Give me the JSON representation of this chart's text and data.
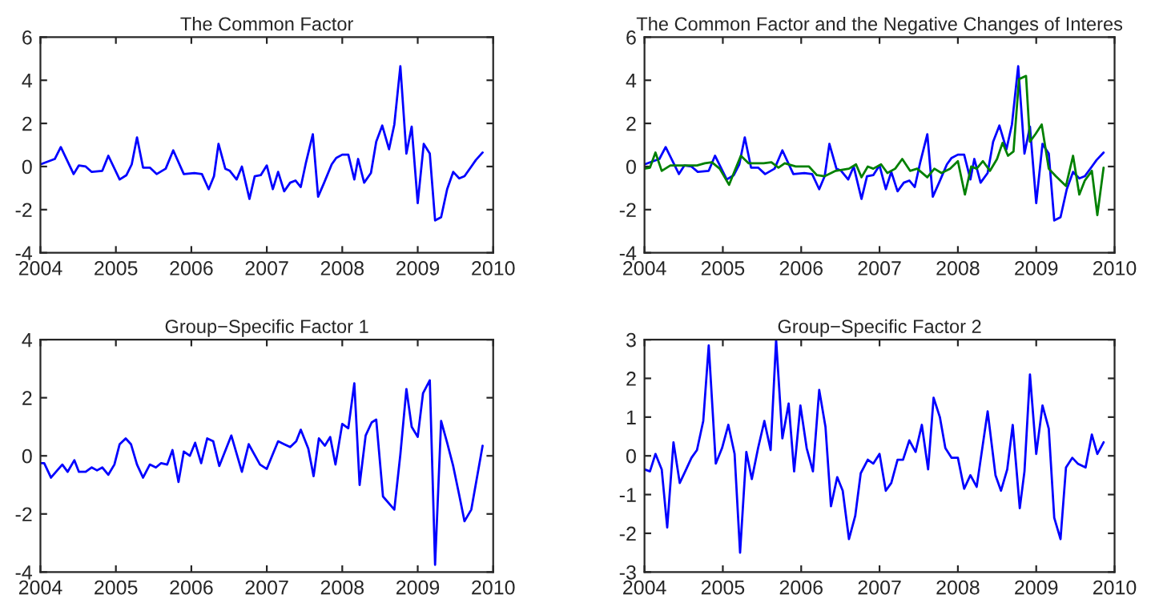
{
  "chart_data": [
    {
      "type": "line",
      "title": "The Common Factor",
      "xlim": [
        2004,
        2010
      ],
      "xticks": [
        2004,
        2005,
        2006,
        2007,
        2008,
        2009,
        2010
      ],
      "ylim": [
        -4,
        6
      ],
      "yticks": [
        -4,
        -2,
        0,
        2,
        4,
        6
      ],
      "grid": false,
      "legend": false,
      "series": [
        {
          "color": "#0000ff",
          "x": [
            2004.0,
            2004.19,
            2004.27,
            2004.44,
            2004.51,
            2004.6,
            2004.68,
            2004.82,
            2004.9,
            2005.05,
            2005.14,
            2005.21,
            2005.28,
            2005.36,
            2005.45,
            2005.54,
            2005.66,
            2005.76,
            2005.9,
            2006.04,
            2006.14,
            2006.23,
            2006.3,
            2006.36,
            2006.45,
            2006.51,
            2006.6,
            2006.67,
            2006.77,
            2006.84,
            2006.92,
            2007.0,
            2007.08,
            2007.15,
            2007.23,
            2007.31,
            2007.38,
            2007.45,
            2007.52,
            2007.61,
            2007.68,
            2007.76,
            2007.86,
            2007.92,
            2008.0,
            2008.08,
            2008.16,
            2008.21,
            2008.29,
            2008.38,
            2008.45,
            2008.53,
            2008.62,
            2008.69,
            2008.77,
            2008.85,
            2008.92,
            2009.0,
            2009.08,
            2009.16,
            2009.23,
            2009.31,
            2009.39,
            2009.47,
            2009.55,
            2009.62,
            2009.71,
            2009.77,
            2009.86
          ],
          "values": [
            0.1,
            0.35,
            0.9,
            -0.35,
            0.05,
            0.0,
            -0.25,
            -0.2,
            0.5,
            -0.6,
            -0.4,
            0.1,
            1.35,
            -0.05,
            -0.05,
            -0.35,
            -0.1,
            0.75,
            -0.35,
            -0.3,
            -0.35,
            -1.05,
            -0.45,
            1.05,
            -0.1,
            -0.2,
            -0.6,
            0.0,
            -1.5,
            -0.45,
            -0.4,
            0.05,
            -1.05,
            -0.25,
            -1.15,
            -0.75,
            -0.65,
            -0.95,
            0.2,
            1.5,
            -1.4,
            -0.75,
            0.1,
            0.4,
            0.55,
            0.55,
            -0.6,
            0.35,
            -0.75,
            -0.3,
            1.15,
            1.9,
            0.8,
            1.95,
            4.65,
            0.6,
            1.85,
            -1.7,
            1.05,
            0.6,
            -2.5,
            -2.35,
            -1.05,
            -0.25,
            -0.55,
            -0.45,
            0.0,
            0.3,
            0.65
          ]
        }
      ]
    },
    {
      "type": "line",
      "title": "The Common Factor and the Negative Changes of Interes",
      "xlim": [
        2004,
        2010
      ],
      "xticks": [
        2004,
        2005,
        2006,
        2007,
        2008,
        2009,
        2010
      ],
      "ylim": [
        -4,
        6
      ],
      "yticks": [
        -4,
        -2,
        0,
        2,
        4,
        6
      ],
      "grid": false,
      "legend": false,
      "series": [
        {
          "color": "#0000ff",
          "x": [
            2004.0,
            2004.19,
            2004.27,
            2004.44,
            2004.51,
            2004.6,
            2004.68,
            2004.82,
            2004.9,
            2005.05,
            2005.14,
            2005.21,
            2005.28,
            2005.36,
            2005.45,
            2005.54,
            2005.66,
            2005.76,
            2005.9,
            2006.04,
            2006.14,
            2006.23,
            2006.3,
            2006.36,
            2006.45,
            2006.51,
            2006.6,
            2006.67,
            2006.77,
            2006.84,
            2006.92,
            2007.0,
            2007.08,
            2007.15,
            2007.23,
            2007.31,
            2007.38,
            2007.45,
            2007.52,
            2007.61,
            2007.68,
            2007.76,
            2007.86,
            2007.92,
            2008.0,
            2008.08,
            2008.16,
            2008.21,
            2008.29,
            2008.38,
            2008.45,
            2008.53,
            2008.62,
            2008.69,
            2008.77,
            2008.85,
            2008.92,
            2009.0,
            2009.08,
            2009.16,
            2009.23,
            2009.31,
            2009.39,
            2009.47,
            2009.55,
            2009.62,
            2009.71,
            2009.77,
            2009.86
          ],
          "values": [
            0.1,
            0.35,
            0.9,
            -0.35,
            0.05,
            0.0,
            -0.25,
            -0.2,
            0.5,
            -0.6,
            -0.4,
            0.1,
            1.35,
            -0.05,
            -0.05,
            -0.35,
            -0.1,
            0.75,
            -0.35,
            -0.3,
            -0.35,
            -1.05,
            -0.45,
            1.05,
            -0.1,
            -0.2,
            -0.6,
            0.0,
            -1.5,
            -0.45,
            -0.4,
            0.05,
            -1.05,
            -0.25,
            -1.15,
            -0.75,
            -0.65,
            -0.95,
            0.2,
            1.5,
            -1.4,
            -0.75,
            0.1,
            0.4,
            0.55,
            0.55,
            -0.6,
            0.35,
            -0.75,
            -0.3,
            1.15,
            1.9,
            0.8,
            1.95,
            4.65,
            0.6,
            1.85,
            -1.7,
            1.05,
            0.6,
            -2.5,
            -2.35,
            -1.05,
            -0.25,
            -0.55,
            -0.45,
            0.0,
            0.3,
            0.65
          ]
        },
        {
          "color": "#008000",
          "x": [
            2004.0,
            2004.07,
            2004.14,
            2004.22,
            2004.33,
            2004.5,
            2004.67,
            2004.77,
            2004.86,
            2004.96,
            2005.08,
            2005.14,
            2005.23,
            2005.33,
            2005.52,
            2005.62,
            2005.71,
            2005.79,
            2005.93,
            2006.1,
            2006.2,
            2006.3,
            2006.44,
            2006.61,
            2006.7,
            2006.77,
            2006.85,
            2006.92,
            2007.02,
            2007.1,
            2007.2,
            2007.29,
            2007.39,
            2007.48,
            2007.61,
            2007.7,
            2007.79,
            2007.9,
            2008.0,
            2008.09,
            2008.17,
            2008.24,
            2008.32,
            2008.41,
            2008.5,
            2008.57,
            2008.64,
            2008.71,
            2008.78,
            2008.87,
            2008.92,
            2008.99,
            2009.07,
            2009.16,
            2009.25,
            2009.38,
            2009.47,
            2009.55,
            2009.62,
            2009.71,
            2009.78,
            2009.86
          ],
          "values": [
            -0.1,
            -0.05,
            0.65,
            -0.2,
            0.05,
            0.05,
            0.05,
            0.15,
            0.2,
            -0.1,
            -0.85,
            -0.3,
            0.5,
            0.15,
            0.15,
            0.2,
            -0.05,
            0.15,
            0.0,
            0.0,
            -0.4,
            -0.45,
            -0.2,
            -0.1,
            0.1,
            -0.5,
            0.0,
            -0.1,
            0.1,
            -0.3,
            -0.1,
            0.35,
            -0.2,
            -0.1,
            -0.5,
            -0.1,
            -0.3,
            -0.1,
            0.25,
            -1.3,
            0.0,
            -0.1,
            0.25,
            -0.2,
            0.35,
            1.1,
            0.5,
            0.7,
            4.05,
            4.2,
            1.15,
            1.5,
            1.95,
            -0.1,
            -0.45,
            -0.9,
            0.5,
            -1.3,
            -0.65,
            -0.2,
            -2.25,
            -0.05
          ]
        }
      ]
    },
    {
      "type": "line",
      "title": "Group−Specific Factor 1",
      "xlim": [
        2004,
        2010
      ],
      "xticks": [
        2004,
        2005,
        2006,
        2007,
        2008,
        2009,
        2010
      ],
      "ylim": [
        -4,
        4
      ],
      "yticks": [
        -4,
        -2,
        0,
        2,
        4
      ],
      "grid": false,
      "legend": false,
      "series": [
        {
          "color": "#0000ff",
          "x": [
            2004.0,
            2004.05,
            2004.14,
            2004.29,
            2004.36,
            2004.45,
            2004.51,
            2004.6,
            2004.68,
            2004.75,
            2004.82,
            2004.9,
            2004.98,
            2005.05,
            2005.13,
            2005.2,
            2005.28,
            2005.36,
            2005.45,
            2005.53,
            2005.6,
            2005.68,
            2005.75,
            2005.83,
            2005.9,
            2005.98,
            2006.05,
            2006.13,
            2006.21,
            2006.29,
            2006.37,
            2006.53,
            2006.67,
            2006.76,
            2006.91,
            2007.0,
            2007.07,
            2007.15,
            2007.23,
            2007.31,
            2007.39,
            2007.45,
            2007.55,
            2007.62,
            2007.69,
            2007.77,
            2007.84,
            2007.91,
            2008.0,
            2008.08,
            2008.16,
            2008.23,
            2008.31,
            2008.39,
            2008.45,
            2008.54,
            2008.69,
            2008.77,
            2008.85,
            2008.92,
            2009.0,
            2009.07,
            2009.16,
            2009.23,
            2009.31,
            2009.39,
            2009.47,
            2009.55,
            2009.62,
            2009.71,
            2009.86
          ],
          "values": [
            -0.25,
            -0.25,
            -0.75,
            -0.3,
            -0.55,
            -0.15,
            -0.55,
            -0.55,
            -0.4,
            -0.5,
            -0.4,
            -0.65,
            -0.3,
            0.4,
            0.6,
            0.4,
            -0.3,
            -0.75,
            -0.3,
            -0.4,
            -0.25,
            -0.3,
            0.2,
            -0.9,
            0.15,
            0.0,
            0.45,
            -0.25,
            0.6,
            0.5,
            -0.35,
            0.7,
            -0.55,
            0.4,
            -0.3,
            -0.45,
            0.0,
            0.5,
            0.4,
            0.3,
            0.5,
            0.9,
            0.25,
            -0.7,
            0.6,
            0.35,
            0.65,
            -0.3,
            1.1,
            0.95,
            2.5,
            -1.0,
            0.7,
            1.15,
            1.25,
            -1.4,
            -1.85,
            0.05,
            2.3,
            1.0,
            0.65,
            2.15,
            2.6,
            -3.75,
            1.2,
            0.45,
            -0.35,
            -1.35,
            -2.25,
            -1.85,
            0.35
          ]
        }
      ]
    },
    {
      "type": "line",
      "title": "Group−Specific Factor 2",
      "xlim": [
        2004,
        2010
      ],
      "xticks": [
        2004,
        2005,
        2006,
        2007,
        2008,
        2009,
        2010
      ],
      "ylim": [
        -3,
        3
      ],
      "yticks": [
        -3,
        -2,
        -1,
        0,
        1,
        2,
        3
      ],
      "grid": false,
      "legend": false,
      "series": [
        {
          "color": "#0000ff",
          "x": [
            2004.0,
            2004.07,
            2004.14,
            2004.22,
            2004.29,
            2004.37,
            2004.45,
            2004.52,
            2004.6,
            2004.67,
            2004.75,
            2004.82,
            2004.91,
            2004.99,
            2005.07,
            2005.15,
            2005.22,
            2005.3,
            2005.37,
            2005.45,
            2005.53,
            2005.61,
            2005.68,
            2005.76,
            2005.84,
            2005.91,
            2005.99,
            2006.07,
            2006.15,
            2006.23,
            2006.31,
            2006.38,
            2006.46,
            2006.53,
            2006.61,
            2006.69,
            2006.76,
            2006.85,
            2006.92,
            2007.0,
            2007.08,
            2007.15,
            2007.23,
            2007.3,
            2007.38,
            2007.46,
            2007.54,
            2007.62,
            2007.69,
            2007.77,
            2007.84,
            2007.92,
            2008.0,
            2008.08,
            2008.16,
            2008.24,
            2008.38,
            2008.48,
            2008.55,
            2008.63,
            2008.7,
            2008.79,
            2008.85,
            2008.92,
            2009.0,
            2009.08,
            2009.16,
            2009.23,
            2009.31,
            2009.38,
            2009.46,
            2009.53,
            2009.63,
            2009.71,
            2009.78,
            2009.86
          ],
          "values": [
            -0.35,
            -0.4,
            0.05,
            -0.35,
            -1.85,
            0.35,
            -0.7,
            -0.4,
            -0.05,
            0.15,
            0.9,
            2.85,
            -0.2,
            0.2,
            0.8,
            0.05,
            -2.5,
            0.1,
            -0.6,
            0.2,
            0.9,
            0.15,
            3.0,
            0.45,
            1.35,
            -0.4,
            1.3,
            0.2,
            -0.4,
            1.7,
            0.75,
            -1.3,
            -0.55,
            -0.9,
            -2.15,
            -1.55,
            -0.45,
            -0.1,
            -0.2,
            0.05,
            -0.9,
            -0.7,
            -0.1,
            -0.1,
            0.4,
            0.1,
            0.8,
            -0.35,
            1.5,
            1.0,
            0.2,
            -0.05,
            -0.05,
            -0.85,
            -0.5,
            -0.8,
            1.15,
            -0.5,
            -0.9,
            -0.35,
            0.8,
            -1.35,
            -0.4,
            2.1,
            0.05,
            1.3,
            0.7,
            -1.6,
            -2.15,
            -0.3,
            -0.05,
            -0.2,
            -0.3,
            0.55,
            0.05,
            0.35
          ]
        }
      ]
    }
  ]
}
